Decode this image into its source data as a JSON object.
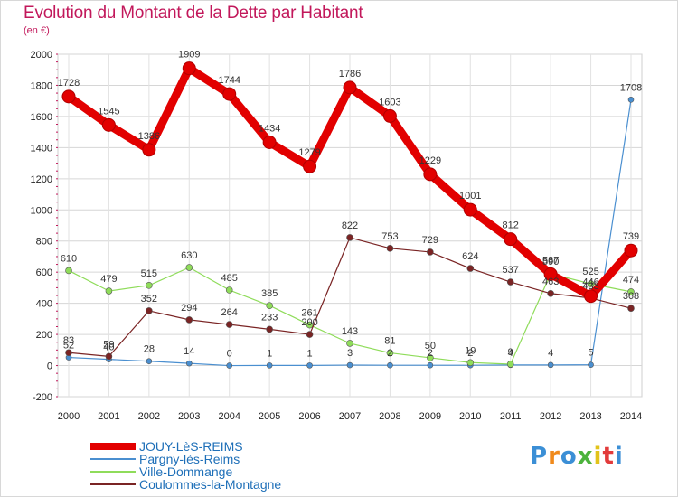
{
  "title": "Evolution du Montant de la Dette par Habitant",
  "unit_label": "(en €)",
  "logo": {
    "text": "Proxiti"
  },
  "chart_data": {
    "type": "line",
    "title": "Evolution du Montant de la Dette par Habitant",
    "subtitle": "(en €)",
    "x": [
      "2000",
      "2001",
      "2002",
      "2003",
      "2004",
      "2005",
      "2006",
      "2007",
      "2008",
      "2009",
      "2010",
      "2011",
      "2012",
      "2013",
      "2014"
    ],
    "ylim": [
      -200,
      2000
    ],
    "yticks": [
      -200,
      0,
      200,
      400,
      600,
      800,
      1000,
      1200,
      1400,
      1600,
      1800,
      2000
    ],
    "grid": true,
    "legend_position": "bottom-left",
    "series": [
      {
        "name": "JOUY-LèS-REIMS",
        "color": "#e20000",
        "width": 9,
        "marker": 7,
        "values": [
          1728,
          1545,
          1386,
          1909,
          1744,
          1434,
          1279,
          1786,
          1603,
          1229,
          1001,
          812,
          587,
          446,
          739
        ],
        "labels": [
          "1728",
          "1545",
          "1386",
          "1909",
          "1744",
          "1434",
          "1279",
          "1786",
          "1603",
          "1229",
          "1001",
          "812",
          "587",
          "446",
          "739"
        ]
      },
      {
        "name": "Pargny-lès-Reims",
        "color": "#4a8fd0",
        "width": 1.2,
        "marker": 3,
        "values": [
          52,
          40,
          28,
          14,
          0,
          1,
          1,
          3,
          2,
          2,
          2,
          4,
          4,
          5,
          1708
        ],
        "labels": [
          "52",
          "40",
          "28",
          "14",
          "0",
          "1",
          "1",
          "3",
          "2",
          "2",
          "2",
          "4",
          "4",
          "5",
          "1708"
        ]
      },
      {
        "name": "Ville-Dommange",
        "color": "#8fdc5a",
        "width": 1.2,
        "marker": 3.5,
        "values": [
          610,
          479,
          515,
          630,
          485,
          385,
          261,
          143,
          81,
          50,
          19,
          9,
          590,
          525,
          474
        ],
        "labels": [
          "610",
          "479",
          "515",
          "630",
          "485",
          "385",
          "261",
          "143",
          "81",
          "50",
          "19",
          "9",
          "590",
          "525",
          "474"
        ]
      },
      {
        "name": "Coulommes-la-Montagne",
        "color": "#7a2424",
        "width": 1.2,
        "marker": 3.5,
        "values": [
          83,
          59,
          352,
          294,
          264,
          233,
          200,
          822,
          753,
          729,
          624,
          537,
          463,
          433,
          368
        ],
        "labels": [
          "83",
          "59",
          "352",
          "294",
          "264",
          "233",
          "200",
          "822",
          "753",
          "729",
          "624",
          "537",
          "463",
          "433",
          "368"
        ]
      }
    ]
  }
}
